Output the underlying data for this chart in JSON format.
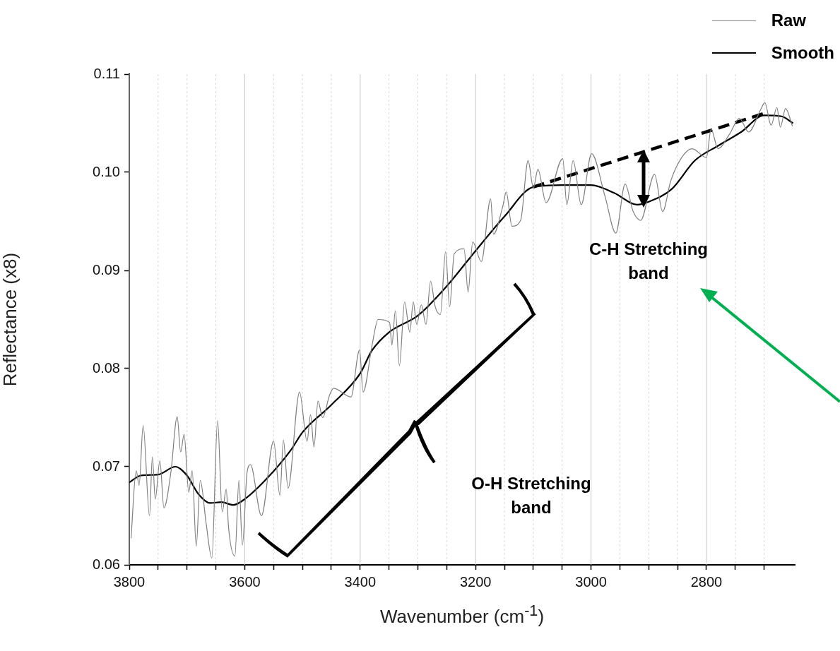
{
  "chart_data": {
    "type": "line",
    "xlabel": "Wavenumber (cm$^{-1}$)",
    "ylabel": "Reflectance (x8)",
    "xlim": [
      3800,
      2647
    ],
    "ylim": [
      0.06,
      0.11
    ],
    "xticks": [
      3800,
      {
        "value": 3750,
        "label": null
      },
      3600,
      {
        "value": 3700,
        "label": null
      },
      {
        "value": 3650,
        "label": null
      },
      {
        "value": 3550,
        "label": null
      },
      3400,
      {
        "value": 3500,
        "label": null
      },
      {
        "value": 3450,
        "label": null
      },
      {
        "value": 3350,
        "label": null
      },
      3200,
      {
        "value": 3300,
        "label": null
      },
      {
        "value": 3250,
        "label": null
      },
      {
        "value": 3150,
        "label": null
      },
      3000,
      {
        "value": 3100,
        "label": null
      },
      {
        "value": 3050,
        "label": null
      },
      {
        "value": 2950,
        "label": null
      },
      2800,
      {
        "value": 2900,
        "label": null
      },
      {
        "value": 2850,
        "label": null
      },
      {
        "value": 2750,
        "label": null
      },
      {
        "value": 2700,
        "label": null
      }
    ],
    "yticks": [
      0.06,
      0.07,
      0.08,
      0.09,
      {
        "value": 0.1,
        "label": "0.10"
      },
      0.11
    ],
    "grid": "x",
    "legend": "top right",
    "annotations": [
      "C-H Stretching band",
      "O-H Stretching band"
    ],
    "series": [
      {
        "name": "Raw",
        "color": "#808080",
        "x": [
          3797,
          3788,
          3783,
          3776,
          3765,
          3760,
          3755,
          3747,
          3740,
          3728,
          3717,
          3711,
          3705,
          3697,
          3691,
          3684,
          3677,
          3667,
          3657,
          3647,
          3639,
          3632,
          3628,
          3617,
          3610,
          3604,
          3596,
          3590,
          3571,
          3550,
          3539,
          3533,
          3525,
          3505,
          3492,
          3486,
          3480,
          3473,
          3465,
          3453,
          3446,
          3416,
          3401,
          3395,
          3379,
          3369,
          3349,
          3345,
          3339,
          3332,
          3323,
          3314,
          3308,
          3302,
          3294,
          3286,
          3278,
          3270,
          3261,
          3252,
          3245,
          3237,
          3220,
          3213,
          3205,
          3190,
          3174,
          3169,
          3153,
          3147,
          3137,
          3122,
          3109,
          3100,
          3092,
          3078,
          3049,
          3042,
          3031,
          3017,
          2999,
          2976,
          2957,
          2941,
          2927,
          2914,
          2890,
          2876,
          2862,
          2843,
          2825,
          2800,
          2792,
          2780,
          2760,
          2743,
          2727,
          2706,
          2699,
          2688,
          2678,
          2672,
          2663,
          2651
        ],
        "values": [
          0.0627,
          0.0696,
          0.0681,
          0.0742,
          0.065,
          0.071,
          0.0667,
          0.0706,
          0.0658,
          0.0694,
          0.0751,
          0.0715,
          0.0733,
          0.0674,
          0.0696,
          0.0619,
          0.0686,
          0.0643,
          0.0607,
          0.0747,
          0.0654,
          0.0677,
          0.0638,
          0.0609,
          0.0686,
          0.062,
          0.0694,
          0.0702,
          0.065,
          0.0726,
          0.0671,
          0.0727,
          0.0678,
          0.0776,
          0.0726,
          0.0753,
          0.072,
          0.0767,
          0.075,
          0.0773,
          0.078,
          0.0771,
          0.0819,
          0.0776,
          0.0825,
          0.085,
          0.0847,
          0.0824,
          0.0859,
          0.0803,
          0.0868,
          0.0837,
          0.0868,
          0.0845,
          0.0865,
          0.0845,
          0.0889,
          0.0863,
          0.0855,
          0.0919,
          0.0863,
          0.0917,
          0.0922,
          0.0878,
          0.0929,
          0.0909,
          0.0973,
          0.0937,
          0.0965,
          0.098,
          0.0945,
          0.0951,
          0.1012,
          0.0984,
          0.1003,
          0.0969,
          0.1014,
          0.0967,
          0.1012,
          0.0967,
          0.1019,
          0.0976,
          0.0938,
          0.0988,
          0.096,
          0.0951,
          0.0998,
          0.096,
          0.0991,
          0.1015,
          0.1024,
          0.1015,
          0.1044,
          0.1024,
          0.1039,
          0.1055,
          0.1041,
          0.1064,
          0.1071,
          0.1048,
          0.1066,
          0.1046,
          0.1065,
          0.1047
        ]
      },
      {
        "name": "Smooth",
        "color": "#000000",
        "x": [
          3800,
          3780,
          3750,
          3720,
          3700,
          3680,
          3660,
          3640,
          3620,
          3600,
          3560,
          3520,
          3500,
          3450,
          3400,
          3380,
          3350,
          3300,
          3250,
          3200,
          3150,
          3100,
          3050,
          3000,
          2960,
          2920,
          2900,
          2860,
          2820,
          2780,
          2740,
          2700,
          2670,
          2650
        ],
        "values": [
          0.0684,
          0.0691,
          0.0692,
          0.07,
          0.0691,
          0.0672,
          0.0663,
          0.0664,
          0.0661,
          0.0667,
          0.0689,
          0.0717,
          0.0735,
          0.0763,
          0.0795,
          0.0818,
          0.0837,
          0.0854,
          0.0884,
          0.092,
          0.0955,
          0.0985,
          0.0987,
          0.0987,
          0.0979,
          0.0967,
          0.097,
          0.0983,
          0.1012,
          0.1027,
          0.1041,
          0.1058,
          0.1057,
          0.105
        ]
      },
      {
        "color": "#000000",
        "line_style": "dashed",
        "x": [
          3100,
          2700
        ],
        "values": [
          0.0985,
          0.106
        ]
      }
    ]
  }
}
